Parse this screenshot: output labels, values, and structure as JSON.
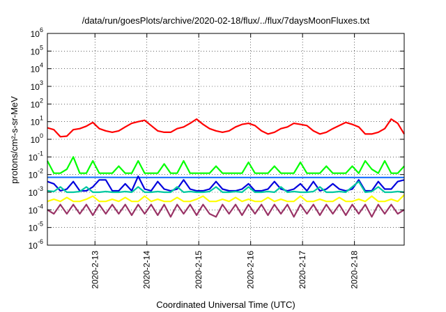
{
  "chart_data": {
    "type": "line",
    "title": "/data/run/goesPlots/archive/2020-02-18/flux/../flux/7daysMoonFluxes.txt",
    "xlabel": "Coordinated Universal Time (UTC)",
    "ylabel": "protons/cm²-s-sr-MeV",
    "y_scale": "log",
    "ylim": [
      1e-06,
      1000000.0
    ],
    "xlim": [
      "2020-02-12 02:00",
      "2020-02-18 23:00"
    ],
    "grid": true,
    "y_ticks": [
      {
        "label": "10",
        "exp": "-6",
        "value": 1e-06
      },
      {
        "label": "10",
        "exp": "-5",
        "value": 1e-05
      },
      {
        "label": "10",
        "exp": "-4",
        "value": 0.0001
      },
      {
        "label": "10",
        "exp": "-3",
        "value": 0.001
      },
      {
        "label": "10",
        "exp": "-2",
        "value": 0.01
      },
      {
        "label": "10",
        "exp": "-1",
        "value": 0.1
      },
      {
        "label": "10",
        "exp": "0",
        "value": 1
      },
      {
        "label": "10",
        "exp": "1",
        "value": 10
      },
      {
        "label": "10",
        "exp": "2",
        "value": 100
      },
      {
        "label": "10",
        "exp": "3",
        "value": 1000
      },
      {
        "label": "10",
        "exp": "4",
        "value": 10000
      },
      {
        "label": "10",
        "exp": "5",
        "value": 100000
      },
      {
        "label": "10",
        "exp": "6",
        "value": 1000000
      }
    ],
    "x_ticks": [
      {
        "label": "2020-2-13",
        "value": "2020-02-13 00:00"
      },
      {
        "label": "2020-2-14",
        "value": "2020-02-14 00:00"
      },
      {
        "label": "2020-2-15",
        "value": "2020-02-15 00:00"
      },
      {
        "label": "2020-2-16",
        "value": "2020-02-16 00:00"
      },
      {
        "label": "2020-2-17",
        "value": "2020-02-17 00:00"
      },
      {
        "label": "2020-2-18",
        "value": "2020-02-18 00:00"
      }
    ],
    "series": [
      {
        "color": "#ff0000",
        "x": [
          "2020-02-12 02:00",
          "2020-02-12 05:00",
          "2020-02-12 08:00",
          "2020-02-12 11:00",
          "2020-02-12 14:00",
          "2020-02-12 17:00",
          "2020-02-12 20:00",
          "2020-02-12 23:00",
          "2020-02-13 02:00",
          "2020-02-13 05:00",
          "2020-02-13 08:00",
          "2020-02-13 11:00",
          "2020-02-13 14:00",
          "2020-02-13 17:00",
          "2020-02-13 20:00",
          "2020-02-13 23:00",
          "2020-02-14 02:00",
          "2020-02-14 05:00",
          "2020-02-14 08:00",
          "2020-02-14 11:00",
          "2020-02-14 14:00",
          "2020-02-14 17:00",
          "2020-02-14 20:00",
          "2020-02-14 23:00",
          "2020-02-15 02:00",
          "2020-02-15 05:00",
          "2020-02-15 08:00",
          "2020-02-15 11:00",
          "2020-02-15 14:00",
          "2020-02-15 17:00",
          "2020-02-15 20:00",
          "2020-02-15 23:00",
          "2020-02-16 02:00",
          "2020-02-16 05:00",
          "2020-02-16 08:00",
          "2020-02-16 11:00",
          "2020-02-16 14:00",
          "2020-02-16 17:00",
          "2020-02-16 20:00",
          "2020-02-16 23:00",
          "2020-02-17 02:00",
          "2020-02-17 05:00",
          "2020-02-17 08:00",
          "2020-02-17 11:00",
          "2020-02-17 14:00",
          "2020-02-17 17:00",
          "2020-02-17 20:00",
          "2020-02-17 23:00",
          "2020-02-18 02:00",
          "2020-02-18 05:00",
          "2020-02-18 08:00",
          "2020-02-18 11:00",
          "2020-02-18 14:00",
          "2020-02-18 17:00",
          "2020-02-18 20:00",
          "2020-02-18 23:00"
        ],
        "y": [
          4.5,
          3.5,
          1.4,
          1.5,
          3.5,
          4,
          5.5,
          9,
          4,
          3,
          2.5,
          3,
          5,
          8,
          10,
          12,
          6,
          3,
          2.5,
          2.5,
          4,
          5,
          8,
          14,
          7,
          4,
          3,
          2.5,
          3,
          5,
          7,
          8,
          6,
          3,
          2,
          2.5,
          4,
          5,
          8,
          7,
          6,
          3,
          2,
          2.5,
          4,
          6,
          9,
          7,
          5,
          2,
          2,
          2.5,
          4,
          14,
          8,
          2
        ]
      },
      {
        "color": "#00ff00",
        "x": [
          "2020-02-12 02:00",
          "2020-02-12 05:00",
          "2020-02-12 08:00",
          "2020-02-12 11:00",
          "2020-02-12 14:00",
          "2020-02-12 17:00",
          "2020-02-12 20:00",
          "2020-02-12 23:00",
          "2020-02-13 02:00",
          "2020-02-13 05:00",
          "2020-02-13 08:00",
          "2020-02-13 11:00",
          "2020-02-13 14:00",
          "2020-02-13 17:00",
          "2020-02-13 20:00",
          "2020-02-13 23:00",
          "2020-02-14 02:00",
          "2020-02-14 05:00",
          "2020-02-14 08:00",
          "2020-02-14 11:00",
          "2020-02-14 14:00",
          "2020-02-14 17:00",
          "2020-02-14 20:00",
          "2020-02-14 23:00",
          "2020-02-15 02:00",
          "2020-02-15 05:00",
          "2020-02-15 08:00",
          "2020-02-15 11:00",
          "2020-02-15 14:00",
          "2020-02-15 17:00",
          "2020-02-15 20:00",
          "2020-02-15 23:00",
          "2020-02-16 02:00",
          "2020-02-16 05:00",
          "2020-02-16 08:00",
          "2020-02-16 11:00",
          "2020-02-16 14:00",
          "2020-02-16 17:00",
          "2020-02-16 20:00",
          "2020-02-16 23:00",
          "2020-02-17 02:00",
          "2020-02-17 05:00",
          "2020-02-17 08:00",
          "2020-02-17 11:00",
          "2020-02-17 14:00",
          "2020-02-17 17:00",
          "2020-02-17 20:00",
          "2020-02-17 23:00",
          "2020-02-18 02:00",
          "2020-02-18 05:00",
          "2020-02-18 08:00",
          "2020-02-18 11:00",
          "2020-02-18 14:00",
          "2020-02-18 17:00",
          "2020-02-18 20:00",
          "2020-02-18 23:00"
        ],
        "y": [
          0.06,
          0.012,
          0.012,
          0.02,
          0.1,
          0.012,
          0.012,
          0.06,
          0.012,
          0.012,
          0.012,
          0.03,
          0.012,
          0.012,
          0.06,
          0.012,
          0.012,
          0.012,
          0.04,
          0.012,
          0.012,
          0.06,
          0.012,
          0.012,
          0.012,
          0.012,
          0.03,
          0.012,
          0.012,
          0.012,
          0.012,
          0.05,
          0.012,
          0.012,
          0.012,
          0.03,
          0.012,
          0.012,
          0.012,
          0.05,
          0.012,
          0.012,
          0.012,
          0.03,
          0.012,
          0.012,
          0.012,
          0.03,
          0.012,
          0.06,
          0.02,
          0.012,
          0.06,
          0.012,
          0.012,
          0.03
        ]
      },
      {
        "color": "#2277ff",
        "x": [
          "2020-02-12 02:00",
          "2020-02-13 00:00",
          "2020-02-14 00:00",
          "2020-02-15 00:00",
          "2020-02-16 00:00",
          "2020-02-17 00:00",
          "2020-02-18 00:00",
          "2020-02-18 23:00"
        ],
        "y": [
          0.007,
          0.007,
          0.0068,
          0.0068,
          0.0068,
          0.0068,
          0.0068,
          0.0068
        ]
      },
      {
        "color": "#0000dd",
        "x": [
          "2020-02-12 02:00",
          "2020-02-12 05:00",
          "2020-02-12 08:00",
          "2020-02-12 11:00",
          "2020-02-12 14:00",
          "2020-02-12 17:00",
          "2020-02-12 20:00",
          "2020-02-12 23:00",
          "2020-02-13 02:00",
          "2020-02-13 05:00",
          "2020-02-13 08:00",
          "2020-02-13 11:00",
          "2020-02-13 14:00",
          "2020-02-13 17:00",
          "2020-02-13 20:00",
          "2020-02-13 23:00",
          "2020-02-14 02:00",
          "2020-02-14 05:00",
          "2020-02-14 08:00",
          "2020-02-14 11:00",
          "2020-02-14 14:00",
          "2020-02-14 17:00",
          "2020-02-14 20:00",
          "2020-02-14 23:00",
          "2020-02-15 02:00",
          "2020-02-15 05:00",
          "2020-02-15 08:00",
          "2020-02-15 11:00",
          "2020-02-15 14:00",
          "2020-02-15 17:00",
          "2020-02-15 20:00",
          "2020-02-15 23:00",
          "2020-02-16 02:00",
          "2020-02-16 05:00",
          "2020-02-16 08:00",
          "2020-02-16 11:00",
          "2020-02-16 14:00",
          "2020-02-16 17:00",
          "2020-02-16 20:00",
          "2020-02-16 23:00",
          "2020-02-17 02:00",
          "2020-02-17 05:00",
          "2020-02-17 08:00",
          "2020-02-17 11:00",
          "2020-02-17 14:00",
          "2020-02-17 17:00",
          "2020-02-17 20:00",
          "2020-02-17 23:00",
          "2020-02-18 02:00",
          "2020-02-18 05:00",
          "2020-02-18 08:00",
          "2020-02-18 11:00",
          "2020-02-18 14:00",
          "2020-02-18 17:00",
          "2020-02-18 20:00",
          "2020-02-18 23:00"
        ],
        "y": [
          0.004,
          0.003,
          0.0012,
          0.0015,
          0.004,
          0.0012,
          0.0012,
          0.002,
          0.005,
          0.005,
          0.0012,
          0.0012,
          0.003,
          0.0012,
          0.008,
          0.0015,
          0.0012,
          0.004,
          0.0015,
          0.0012,
          0.0015,
          0.005,
          0.0015,
          0.0012,
          0.0012,
          0.0015,
          0.004,
          0.0015,
          0.0012,
          0.0012,
          0.0015,
          0.003,
          0.0012,
          0.0012,
          0.0015,
          0.004,
          0.0015,
          0.0012,
          0.0015,
          0.003,
          0.0012,
          0.004,
          0.0012,
          0.0015,
          0.003,
          0.0015,
          0.0012,
          0.0015,
          0.005,
          0.0012,
          0.0012,
          0.004,
          0.0015,
          0.0015,
          0.004,
          0.005
        ]
      },
      {
        "color": "#00c8a0",
        "x": [
          "2020-02-12 02:00",
          "2020-02-12 05:00",
          "2020-02-12 08:00",
          "2020-02-12 11:00",
          "2020-02-12 14:00",
          "2020-02-12 17:00",
          "2020-02-12 20:00",
          "2020-02-12 23:00",
          "2020-02-13 02:00",
          "2020-02-13 05:00",
          "2020-02-13 08:00",
          "2020-02-13 11:00",
          "2020-02-13 14:00",
          "2020-02-13 17:00",
          "2020-02-13 20:00",
          "2020-02-13 23:00",
          "2020-02-14 02:00",
          "2020-02-14 05:00",
          "2020-02-14 08:00",
          "2020-02-14 11:00",
          "2020-02-14 14:00",
          "2020-02-14 17:00",
          "2020-02-14 20:00",
          "2020-02-14 23:00",
          "2020-02-15 02:00",
          "2020-02-15 05:00",
          "2020-02-15 08:00",
          "2020-02-15 11:00",
          "2020-02-15 14:00",
          "2020-02-15 17:00",
          "2020-02-15 20:00",
          "2020-02-15 23:00",
          "2020-02-16 02:00",
          "2020-02-16 05:00",
          "2020-02-16 08:00",
          "2020-02-16 11:00",
          "2020-02-16 14:00",
          "2020-02-16 17:00",
          "2020-02-16 20:00",
          "2020-02-16 23:00",
          "2020-02-17 02:00",
          "2020-02-17 05:00",
          "2020-02-17 08:00",
          "2020-02-17 11:00",
          "2020-02-17 14:00",
          "2020-02-17 17:00",
          "2020-02-17 20:00",
          "2020-02-17 23:00",
          "2020-02-18 02:00",
          "2020-02-18 05:00",
          "2020-02-18 08:00",
          "2020-02-18 11:00",
          "2020-02-18 14:00",
          "2020-02-18 17:00",
          "2020-02-18 20:00",
          "2020-02-18 23:00"
        ],
        "y": [
          0.0012,
          0.0011,
          0.002,
          0.001,
          0.001,
          0.0011,
          0.002,
          0.001,
          0.001,
          0.0011,
          0.001,
          0.001,
          0.0011,
          0.001,
          0.002,
          0.001,
          0.001,
          0.0011,
          0.001,
          0.001,
          0.002,
          0.001,
          0.0011,
          0.001,
          0.001,
          0.0011,
          0.002,
          0.001,
          0.001,
          0.0011,
          0.001,
          0.002,
          0.001,
          0.001,
          0.0011,
          0.001,
          0.002,
          0.001,
          0.0011,
          0.001,
          0.001,
          0.0011,
          0.002,
          0.001,
          0.001,
          0.0011,
          0.001,
          0.002,
          0.004,
          0.001,
          0.0011,
          0.002,
          0.001,
          0.001,
          0.0011,
          0.001
        ]
      },
      {
        "color": "#ffff00",
        "x": [
          "2020-02-12 02:00",
          "2020-02-12 05:00",
          "2020-02-12 08:00",
          "2020-02-12 11:00",
          "2020-02-12 14:00",
          "2020-02-12 17:00",
          "2020-02-12 20:00",
          "2020-02-12 23:00",
          "2020-02-13 02:00",
          "2020-02-13 05:00",
          "2020-02-13 08:00",
          "2020-02-13 11:00",
          "2020-02-13 14:00",
          "2020-02-13 17:00",
          "2020-02-13 20:00",
          "2020-02-13 23:00",
          "2020-02-14 02:00",
          "2020-02-14 05:00",
          "2020-02-14 08:00",
          "2020-02-14 11:00",
          "2020-02-14 14:00",
          "2020-02-14 17:00",
          "2020-02-14 20:00",
          "2020-02-14 23:00",
          "2020-02-15 02:00",
          "2020-02-15 05:00",
          "2020-02-15 08:00",
          "2020-02-15 11:00",
          "2020-02-15 14:00",
          "2020-02-15 17:00",
          "2020-02-15 20:00",
          "2020-02-15 23:00",
          "2020-02-16 02:00",
          "2020-02-16 05:00",
          "2020-02-16 08:00",
          "2020-02-16 11:00",
          "2020-02-16 14:00",
          "2020-02-16 17:00",
          "2020-02-16 20:00",
          "2020-02-16 23:00",
          "2020-02-17 02:00",
          "2020-02-17 05:00",
          "2020-02-17 08:00",
          "2020-02-17 11:00",
          "2020-02-17 14:00",
          "2020-02-17 17:00",
          "2020-02-17 20:00",
          "2020-02-17 23:00",
          "2020-02-18 02:00",
          "2020-02-18 05:00",
          "2020-02-18 08:00",
          "2020-02-18 11:00",
          "2020-02-18 14:00",
          "2020-02-18 17:00",
          "2020-02-18 20:00",
          "2020-02-18 23:00"
        ],
        "y": [
          0.0003,
          0.0004,
          0.0003,
          0.0005,
          0.0003,
          0.0003,
          0.0004,
          0.0006,
          0.0003,
          0.0003,
          0.0004,
          0.0003,
          0.0005,
          0.0003,
          0.0003,
          0.0006,
          0.0003,
          0.0004,
          0.0003,
          0.0003,
          0.0005,
          0.0003,
          0.0003,
          0.0004,
          0.0006,
          0.0003,
          0.0003,
          0.0004,
          0.0003,
          0.0005,
          0.0003,
          0.0004,
          0.0003,
          0.0003,
          0.0005,
          0.0003,
          0.0004,
          0.0003,
          0.0003,
          0.0006,
          0.0003,
          0.0003,
          0.0004,
          0.0003,
          0.0003,
          0.0005,
          0.0003,
          0.0003,
          0.0004,
          0.0003,
          0.0006,
          0.0003,
          0.0003,
          0.0004,
          0.0003,
          0.0007
        ]
      },
      {
        "color": "#993366",
        "x": [
          "2020-02-12 02:00",
          "2020-02-12 05:00",
          "2020-02-12 08:00",
          "2020-02-12 11:00",
          "2020-02-12 14:00",
          "2020-02-12 17:00",
          "2020-02-12 20:00",
          "2020-02-12 23:00",
          "2020-02-13 02:00",
          "2020-02-13 05:00",
          "2020-02-13 08:00",
          "2020-02-13 11:00",
          "2020-02-13 14:00",
          "2020-02-13 17:00",
          "2020-02-13 20:00",
          "2020-02-13 23:00",
          "2020-02-14 02:00",
          "2020-02-14 05:00",
          "2020-02-14 08:00",
          "2020-02-14 11:00",
          "2020-02-14 14:00",
          "2020-02-14 17:00",
          "2020-02-14 20:00",
          "2020-02-14 23:00",
          "2020-02-15 02:00",
          "2020-02-15 05:00",
          "2020-02-15 08:00",
          "2020-02-15 11:00",
          "2020-02-15 14:00",
          "2020-02-15 17:00",
          "2020-02-15 20:00",
          "2020-02-15 23:00",
          "2020-02-16 02:00",
          "2020-02-16 05:00",
          "2020-02-16 08:00",
          "2020-02-16 11:00",
          "2020-02-16 14:00",
          "2020-02-16 17:00",
          "2020-02-16 20:00",
          "2020-02-16 23:00",
          "2020-02-17 02:00",
          "2020-02-17 05:00",
          "2020-02-17 08:00",
          "2020-02-17 11:00",
          "2020-02-17 14:00",
          "2020-02-17 17:00",
          "2020-02-17 20:00",
          "2020-02-17 23:00",
          "2020-02-18 02:00",
          "2020-02-18 05:00",
          "2020-02-18 08:00",
          "2020-02-18 11:00",
          "2020-02-18 14:00",
          "2020-02-18 17:00",
          "2020-02-18 20:00",
          "2020-02-18 23:00"
        ],
        "y": [
          0.0001,
          6e-05,
          0.0002,
          6e-05,
          0.0002,
          6e-05,
          0.0002,
          5e-05,
          0.0002,
          6e-05,
          0.0002,
          6e-05,
          0.0002,
          5e-05,
          0.0002,
          6e-05,
          0.0002,
          5e-05,
          0.0002,
          4e-05,
          0.0002,
          6e-05,
          0.0002,
          5e-05,
          0.0002,
          6e-05,
          4e-05,
          0.0002,
          6e-05,
          0.0002,
          5e-05,
          0.0002,
          6e-05,
          0.0002,
          5e-05,
          0.0002,
          6e-05,
          0.0002,
          4e-05,
          0.0002,
          6e-05,
          0.0002,
          5e-05,
          0.0002,
          6e-05,
          0.0002,
          5e-05,
          0.0002,
          6e-05,
          0.0002,
          4e-05,
          0.0002,
          6e-05,
          0.0002,
          6e-05,
          0.0001
        ]
      }
    ]
  }
}
